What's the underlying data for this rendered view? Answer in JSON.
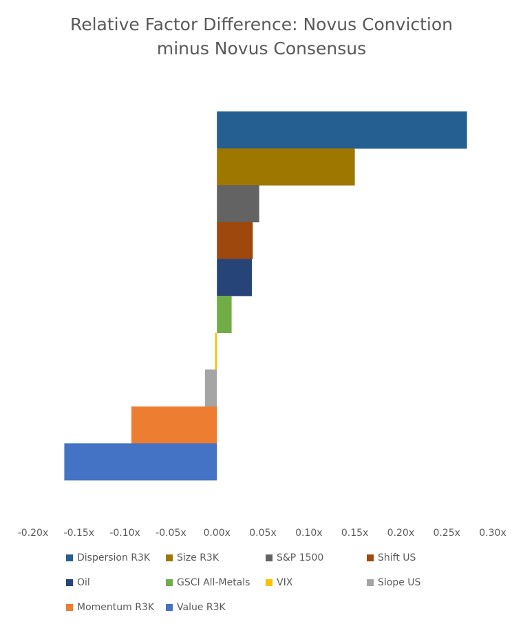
{
  "chart_data": {
    "type": "bar",
    "orientation": "horizontal",
    "title_line1": "Relative Factor Difference: Novus Conviction",
    "title_line2": "minus Novus Consensus",
    "xlim": [
      -0.2,
      0.3
    ],
    "x_ticks": [
      "-0.20x",
      "-0.15x",
      "-0.10x",
      "-0.05x",
      "0.00x",
      "0.05x",
      "0.10x",
      "0.15x",
      "0.20x",
      "0.25x",
      "0.30x"
    ],
    "grid": false,
    "legend_position": "bottom",
    "series": [
      {
        "name": "Dispersion R3K",
        "value": 0.272,
        "color": "#255E91"
      },
      {
        "name": "Size R3K",
        "value": 0.15,
        "color": "#9E7700"
      },
      {
        "name": "S&P 1500",
        "value": 0.046,
        "color": "#636363"
      },
      {
        "name": "Shift US",
        "value": 0.039,
        "color": "#9E480E"
      },
      {
        "name": "Oil",
        "value": 0.038,
        "color": "#264478"
      },
      {
        "name": "GSCI All-Metals",
        "value": 0.016,
        "color": "#70AD47"
      },
      {
        "name": "VIX",
        "value": -0.002,
        "color": "#FFC000"
      },
      {
        "name": "Slope US",
        "value": -0.013,
        "color": "#A5A5A5"
      },
      {
        "name": "Momentum R3K",
        "value": -0.093,
        "color": "#ED7D31"
      },
      {
        "name": "Value R3K",
        "value": -0.166,
        "color": "#4472C4"
      }
    ]
  }
}
